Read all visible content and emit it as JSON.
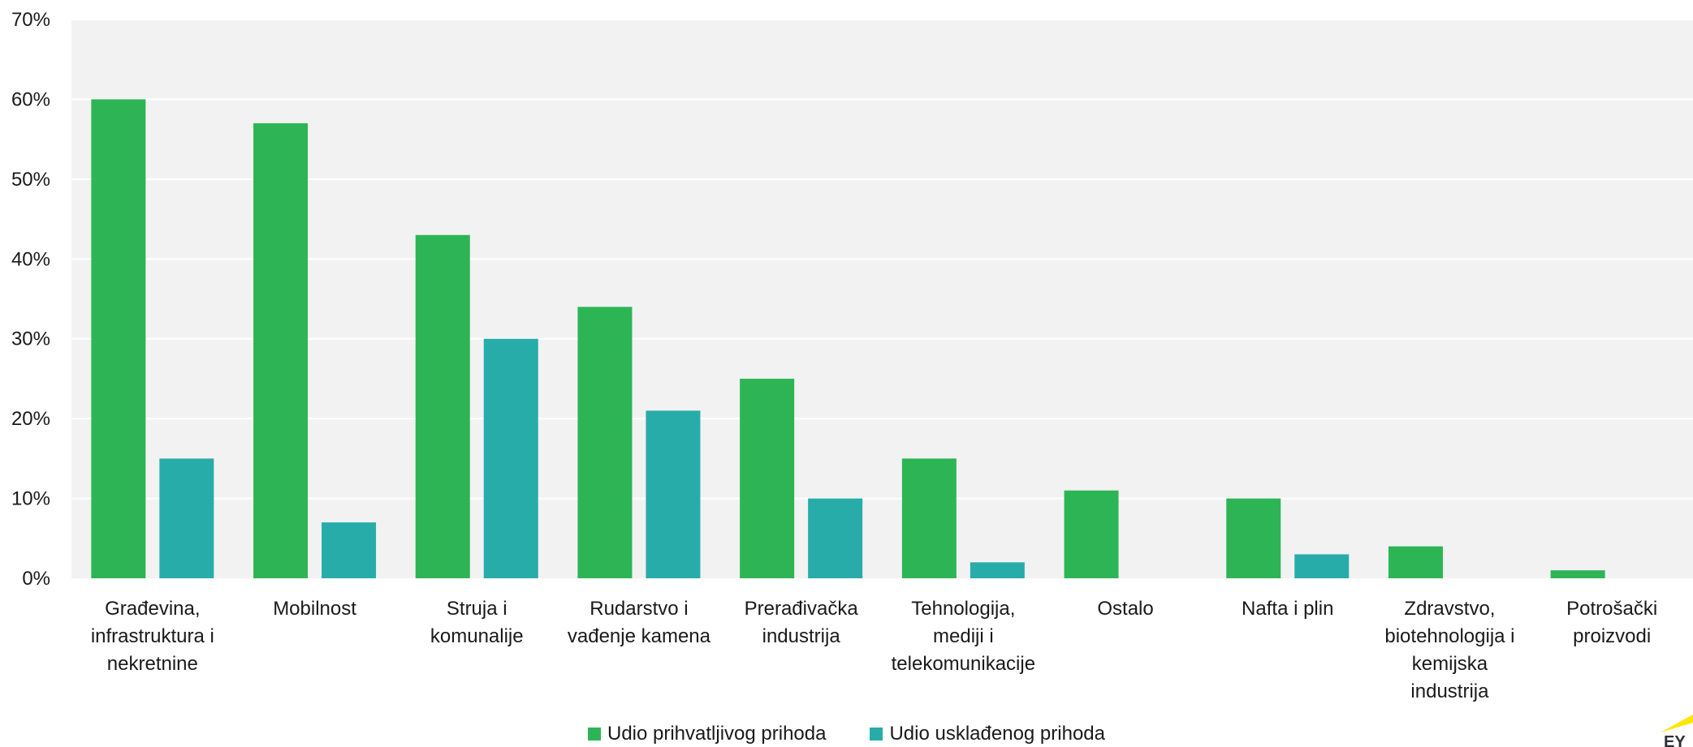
{
  "colors": {
    "eligible": "#2db555",
    "aligned": "#27aca9",
    "plot_bg": "#f2f2f2",
    "grid": "#ffffff",
    "logo": "#ffe600"
  },
  "chart_data": {
    "type": "bar",
    "title": "",
    "xlabel": "",
    "ylabel": "",
    "ylim": [
      0,
      70
    ],
    "y_ticks": [
      0,
      10,
      20,
      30,
      40,
      50,
      60,
      70
    ],
    "y_tick_labels": [
      "0%",
      "10%",
      "20%",
      "30%",
      "40%",
      "50%",
      "60%",
      "70%"
    ],
    "grid": true,
    "legend_position": "bottom",
    "categories": [
      [
        "Građevina,",
        "infrastruktura i",
        "nekretnine"
      ],
      [
        "Mobilnost"
      ],
      [
        "Struja i",
        "komunalije"
      ],
      [
        "Rudarstvo i",
        "vađenje kamena"
      ],
      [
        "Prerađivačka",
        "industrija"
      ],
      [
        "Tehnologija,",
        "mediji i",
        "telekomunikacije"
      ],
      [
        "Ostalo"
      ],
      [
        "Nafta i plin"
      ],
      [
        "Zdravstvo,",
        "biotehnologija i",
        "kemijska",
        "industrija"
      ],
      [
        "Potrošački",
        "proizvodi"
      ]
    ],
    "series": [
      {
        "name": "Udio prihvatljivog prihoda",
        "values": [
          60,
          57,
          43,
          34,
          25,
          15,
          11,
          10,
          4,
          1
        ]
      },
      {
        "name": "Udio usklađenog prihoda",
        "values": [
          15,
          7,
          30,
          21,
          10,
          2,
          0,
          3,
          0,
          0
        ]
      }
    ]
  }
}
